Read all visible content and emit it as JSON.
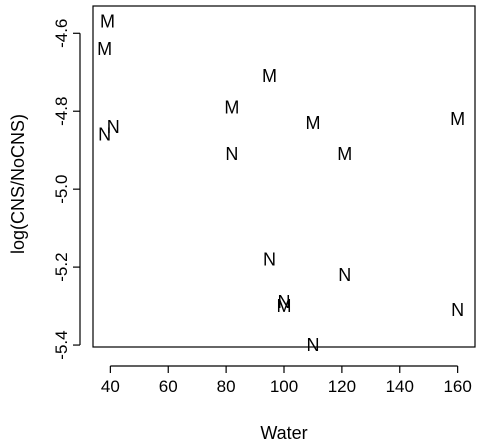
{
  "chart_data": {
    "type": "scatter",
    "title": "",
    "xlabel": "Water",
    "ylabel": "log(CNS/NoCNS)",
    "xlim": [
      34,
      166
    ],
    "ylim": [
      -5.405,
      -4.53
    ],
    "xticks": [
      40,
      60,
      80,
      100,
      120,
      140,
      160
    ],
    "yticks": [
      -4.6,
      -4.8,
      -5.0,
      -5.2,
      -5.4
    ],
    "ytick_labels": [
      "-4.6",
      "-4.8",
      "-5.0",
      "-5.2",
      "-5.4"
    ],
    "grid": false,
    "legend": "none",
    "marker_labels": [
      "M",
      "N"
    ],
    "points": [
      {
        "x": 39,
        "y": -4.57,
        "label": "M"
      },
      {
        "x": 38,
        "y": -4.64,
        "label": "M"
      },
      {
        "x": 95,
        "y": -4.71,
        "label": "M"
      },
      {
        "x": 82,
        "y": -4.79,
        "label": "M"
      },
      {
        "x": 110,
        "y": -4.83,
        "label": "M"
      },
      {
        "x": 160,
        "y": -4.82,
        "label": "M"
      },
      {
        "x": 121,
        "y": -4.91,
        "label": "M"
      },
      {
        "x": 100,
        "y": -5.3,
        "label": "M"
      },
      {
        "x": 41,
        "y": -4.84,
        "label": "N"
      },
      {
        "x": 38,
        "y": -4.86,
        "label": "N"
      },
      {
        "x": 82,
        "y": -4.91,
        "label": "N"
      },
      {
        "x": 95,
        "y": -5.18,
        "label": "N"
      },
      {
        "x": 121,
        "y": -5.22,
        "label": "N"
      },
      {
        "x": 100,
        "y": -5.29,
        "label": "N"
      },
      {
        "x": 160,
        "y": -5.31,
        "label": "N"
      },
      {
        "x": 110,
        "y": -5.4,
        "label": "N"
      }
    ]
  }
}
